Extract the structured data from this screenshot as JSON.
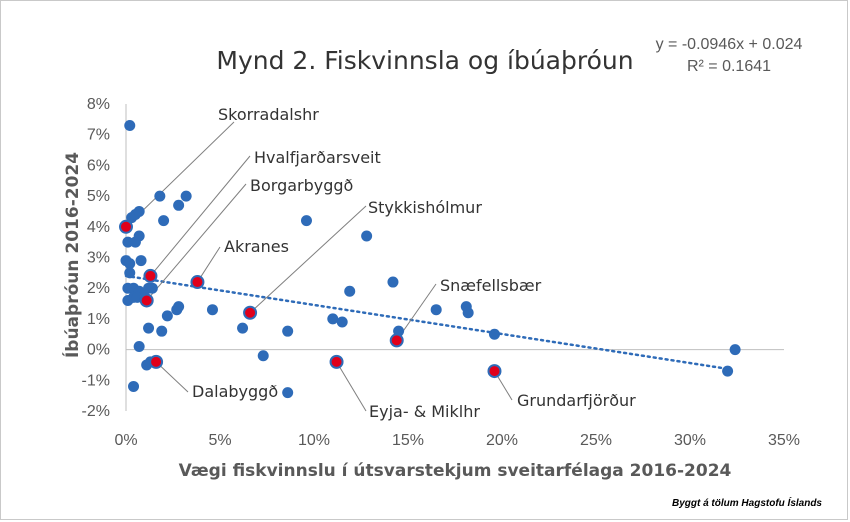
{
  "chart_data": {
    "type": "scatter",
    "title": "Mynd 2. Fiskvinnsla og íbúaþróun",
    "xlabel": "Vægi fiskvinnslu í útsvarstekjum sveitarfélaga 2016-2024",
    "ylabel": "Íbúaþróun 2016-2024",
    "xlim": [
      0,
      0.35
    ],
    "ylim": [
      -0.02,
      0.08
    ],
    "x_ticks": [
      0,
      0.05,
      0.1,
      0.15,
      0.2,
      0.25,
      0.3,
      0.35
    ],
    "x_tick_labels": [
      "0%",
      "5%",
      "10%",
      "15%",
      "20%",
      "25%",
      "30%",
      "35%"
    ],
    "y_ticks": [
      -0.02,
      -0.01,
      0,
      0.01,
      0.02,
      0.03,
      0.04,
      0.05,
      0.06,
      0.07,
      0.08
    ],
    "y_tick_labels": [
      "-2%",
      "-1%",
      "0%",
      "1%",
      "2%",
      "3%",
      "4%",
      "5%",
      "6%",
      "7%",
      "8%"
    ],
    "grid": false,
    "trendline": {
      "slope": -0.0946,
      "intercept": 0.024,
      "equation": "y = -0.0946x + 0.024",
      "r_squared": "R² = 0.1641"
    },
    "points": [
      {
        "x": 0.002,
        "y": 0.073
      },
      {
        "x": 0.003,
        "y": 0.043
      },
      {
        "x": 0.005,
        "y": 0.044
      },
      {
        "x": 0.007,
        "y": 0.045
      },
      {
        "x": 0.001,
        "y": 0.035
      },
      {
        "x": 0.005,
        "y": 0.035
      },
      {
        "x": 0.007,
        "y": 0.037
      },
      {
        "x": 0.0,
        "y": 0.029
      },
      {
        "x": 0.002,
        "y": 0.028
      },
      {
        "x": 0.008,
        "y": 0.029
      },
      {
        "x": 0.002,
        "y": 0.025
      },
      {
        "x": 0.001,
        "y": 0.02
      },
      {
        "x": 0.004,
        "y": 0.02
      },
      {
        "x": 0.007,
        "y": 0.019
      },
      {
        "x": 0.001,
        "y": 0.016
      },
      {
        "x": 0.004,
        "y": 0.017
      },
      {
        "x": 0.006,
        "y": 0.017
      },
      {
        "x": 0.01,
        "y": 0.017
      },
      {
        "x": 0.012,
        "y": 0.02
      },
      {
        "x": 0.014,
        "y": 0.02
      },
      {
        "x": 0.018,
        "y": 0.05
      },
      {
        "x": 0.02,
        "y": 0.042
      },
      {
        "x": 0.028,
        "y": 0.047
      },
      {
        "x": 0.032,
        "y": 0.05
      },
      {
        "x": 0.022,
        "y": 0.011
      },
      {
        "x": 0.027,
        "y": 0.013
      },
      {
        "x": 0.028,
        "y": 0.014
      },
      {
        "x": 0.012,
        "y": 0.007
      },
      {
        "x": 0.019,
        "y": 0.006
      },
      {
        "x": 0.007,
        "y": 0.001
      },
      {
        "x": 0.011,
        "y": -0.005
      },
      {
        "x": 0.013,
        "y": -0.004
      },
      {
        "x": 0.004,
        "y": -0.012
      },
      {
        "x": 0.046,
        "y": 0.013
      },
      {
        "x": 0.062,
        "y": 0.007
      },
      {
        "x": 0.073,
        "y": -0.002
      },
      {
        "x": 0.086,
        "y": 0.006
      },
      {
        "x": 0.086,
        "y": -0.014
      },
      {
        "x": 0.096,
        "y": 0.042
      },
      {
        "x": 0.11,
        "y": 0.01
      },
      {
        "x": 0.115,
        "y": 0.009
      },
      {
        "x": 0.119,
        "y": 0.019
      },
      {
        "x": 0.128,
        "y": 0.037
      },
      {
        "x": 0.142,
        "y": 0.022
      },
      {
        "x": 0.145,
        "y": 0.006
      },
      {
        "x": 0.165,
        "y": 0.013
      },
      {
        "x": 0.181,
        "y": 0.014
      },
      {
        "x": 0.182,
        "y": 0.012
      },
      {
        "x": 0.196,
        "y": 0.005
      },
      {
        "x": 0.32,
        "y": -0.007
      },
      {
        "x": 0.324,
        "y": 0.0
      }
    ],
    "highlighted": [
      {
        "name": "Skorradalshr",
        "x": 0.0,
        "y": 0.04
      },
      {
        "name": "Hvalfjarðarsveit",
        "x": 0.013,
        "y": 0.024
      },
      {
        "name": "Borgarbyggð",
        "x": 0.011,
        "y": 0.016
      },
      {
        "name": "Akranes",
        "x": 0.038,
        "y": 0.022
      },
      {
        "name": "Stykkishólmur",
        "x": 0.066,
        "y": 0.012
      },
      {
        "name": "Snæfellsbær",
        "x": 0.144,
        "y": 0.003
      },
      {
        "name": "Dalabyggð",
        "x": 0.016,
        "y": -0.004
      },
      {
        "name": "Eyja- & Miklhr",
        "x": 0.112,
        "y": -0.004
      },
      {
        "name": "Grundarfjörður",
        "x": 0.196,
        "y": -0.007
      }
    ],
    "source": "Byggt á tölum Hagstofu Íslands",
    "colors": {
      "point": "#2e6bb8",
      "highlight_fill": "#e0001b",
      "trendline": "#2e6bb8",
      "axis": "#bfbfbf",
      "leader": "#7f7f7f"
    }
  }
}
